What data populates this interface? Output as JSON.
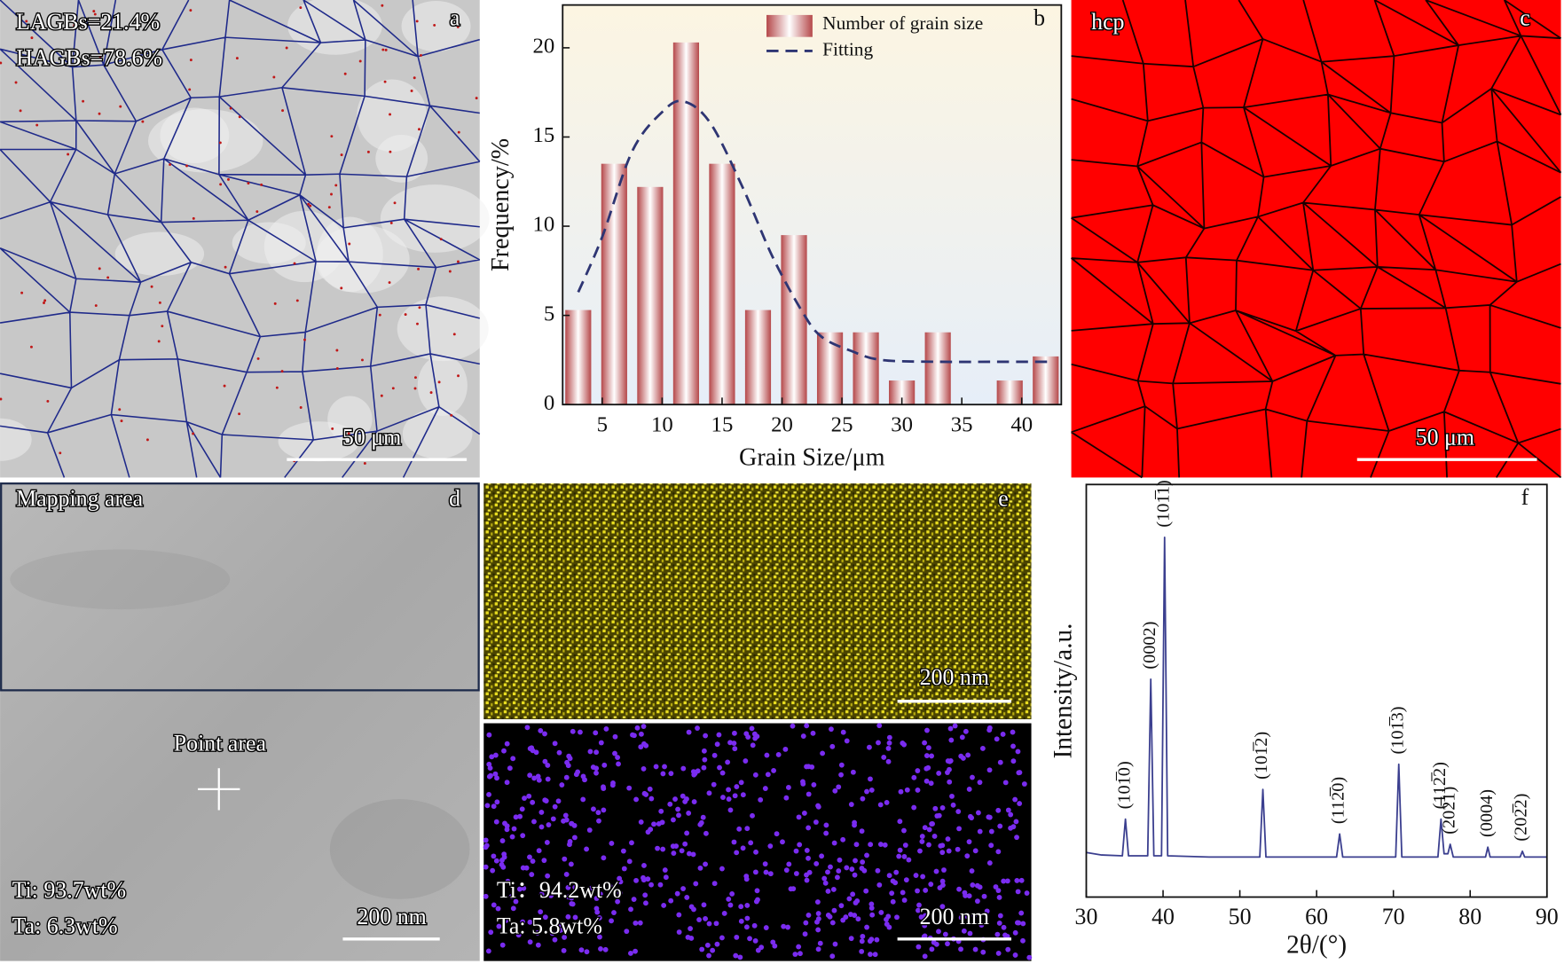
{
  "panels": {
    "a": {
      "label": "a",
      "texts": [
        "LAGBs=21.4%",
        "HAGBs=78.6%"
      ],
      "scale_bar": "50 μm"
    },
    "c": {
      "label": "c",
      "phase": "hcp",
      "scale_bar": "50 μm"
    },
    "d": {
      "label": "d",
      "region": "Mapping area",
      "point": "Point area",
      "composition": [
        "Ti: 93.7wt%",
        "Ta: 6.3wt%"
      ],
      "scale_bar": "200 nm"
    },
    "e": {
      "label": "e",
      "scale_bar_top": "200 nm",
      "scale_bar_bottom": "200 nm",
      "composition": [
        "Ti：94.2wt%",
        "Ta: 5.8wt%"
      ]
    }
  },
  "chart_data": [
    {
      "type": "bar",
      "panel_label": "b",
      "x_label": "Grain Size/μm",
      "y_label": "Frequency/%",
      "xlim": [
        1.7,
        43.3
      ],
      "ylim": [
        0,
        22.4
      ],
      "xticks": [
        5,
        10,
        15,
        20,
        25,
        30,
        35,
        40
      ],
      "yticks": [
        0,
        5,
        10,
        15,
        20
      ],
      "legend": "top-right",
      "series": [
        {
          "name": "Number of grain size",
          "type": "bar",
          "color": "#b5484a",
          "x": [
            3,
            6,
            9,
            12,
            15,
            18,
            21,
            24,
            27,
            30,
            33,
            36,
            39,
            42
          ],
          "values": [
            5.3,
            13.5,
            12.2,
            20.3,
            13.5,
            5.3,
            9.5,
            4.05,
            4.05,
            1.35,
            4.05,
            0,
            1.35,
            2.7
          ]
        },
        {
          "name": "Fitting",
          "type": "line",
          "color": "#2e3573",
          "x": [
            3,
            5,
            7.5,
            10,
            11.75,
            14,
            16.7,
            19.2,
            21.7,
            23.3,
            25.8,
            28.3,
            33,
            38,
            42.5
          ],
          "values": [
            6.3,
            9.4,
            14.2,
            16.4,
            17.0,
            15.8,
            12.2,
            8.3,
            5.2,
            3.8,
            3.0,
            2.5,
            2.4,
            2.4,
            2.4
          ]
        }
      ]
    },
    {
      "type": "line",
      "panel_label": "f",
      "x_label": "2θ/(°)",
      "y_label": "Intensity/a.u.",
      "xlim": [
        30,
        90
      ],
      "ylim": [
        0,
        100
      ],
      "xticks": [
        30,
        40,
        50,
        60,
        70,
        80,
        90
      ],
      "series": [
        {
          "type": "line",
          "color": "#3b3f8f",
          "x": [
            30,
            32,
            34.7,
            35.1,
            35.5,
            38.0,
            38.4,
            38.8,
            39.8,
            40.2,
            40.6,
            46,
            52.6,
            53.0,
            53.4,
            58,
            62.6,
            63.0,
            63.4,
            67,
            70.3,
            70.7,
            71.1,
            75.8,
            76.2,
            76.6,
            77.1,
            77.4,
            77.8,
            82.0,
            82.3,
            82.6,
            86.5,
            86.8,
            87.1,
            90
          ],
          "values": [
            10.8,
            10.2,
            10.0,
            18.9,
            10.0,
            10.0,
            52.8,
            10.0,
            10.0,
            87.2,
            10.0,
            9.7,
            9.7,
            26.1,
            9.7,
            9.7,
            9.7,
            15.3,
            9.7,
            9.7,
            9.7,
            32.2,
            9.7,
            9.7,
            18.9,
            10.5,
            10.5,
            12.8,
            9.7,
            9.7,
            12.1,
            9.7,
            9.7,
            11.1,
            9.7,
            9.7
          ]
        }
      ],
      "annotations": [
        {
          "text": "(101̅0)",
          "x": 35.1
        },
        {
          "text": "(0002)",
          "x": 38.4
        },
        {
          "text": "(101̅1)",
          "x": 40.2
        },
        {
          "text": "(101̅2)",
          "x": 53.0
        },
        {
          "text": "(112̅0)",
          "x": 63.0
        },
        {
          "text": "(101̅3)",
          "x": 70.7
        },
        {
          "text": "(112̅2)",
          "x": 76.2
        },
        {
          "text": "(202̅1)",
          "x": 77.4
        },
        {
          "text": "(0004)",
          "x": 82.3
        },
        {
          "text": "(202̅2)",
          "x": 86.8
        }
      ]
    }
  ]
}
